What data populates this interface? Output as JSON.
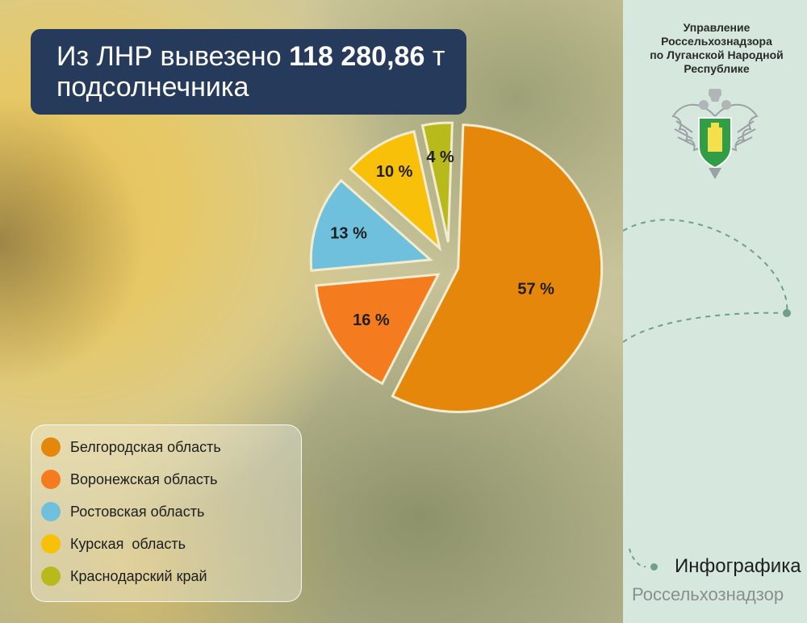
{
  "header": {
    "title_prefix": "Из ЛНР вывезено",
    "title_amount": "118 280,86",
    "title_unit": "т",
    "title_line2": "подсолнечника"
  },
  "organization": {
    "name_lines": [
      "Управление",
      "Россельхознадзора",
      "по Луганской Народной",
      "Республике"
    ],
    "emblem_icon": "coat-of-arms-double-headed-eagle-icon"
  },
  "chart_data": {
    "type": "pie",
    "title": "",
    "series": [
      {
        "name": "Белгородская область",
        "value": 57,
        "label": "57 %",
        "color": "#e4870a"
      },
      {
        "name": "Воронежская область",
        "value": 16,
        "label": "16 %",
        "color": "#f57c1e"
      },
      {
        "name": "Ростовская область",
        "value": 13,
        "label": "13 %",
        "color": "#6ec0dc"
      },
      {
        "name": "Курская  область",
        "value": 10,
        "label": "10 %",
        "color": "#f9c00a"
      },
      {
        "name": "Краснодарский край",
        "value": 4,
        "label": "4 %",
        "color": "#b8b91a"
      }
    ],
    "legend_position": "bottom-left"
  },
  "footer": {
    "title": "Инфографика",
    "subtitle": "Россельхознадзор"
  }
}
